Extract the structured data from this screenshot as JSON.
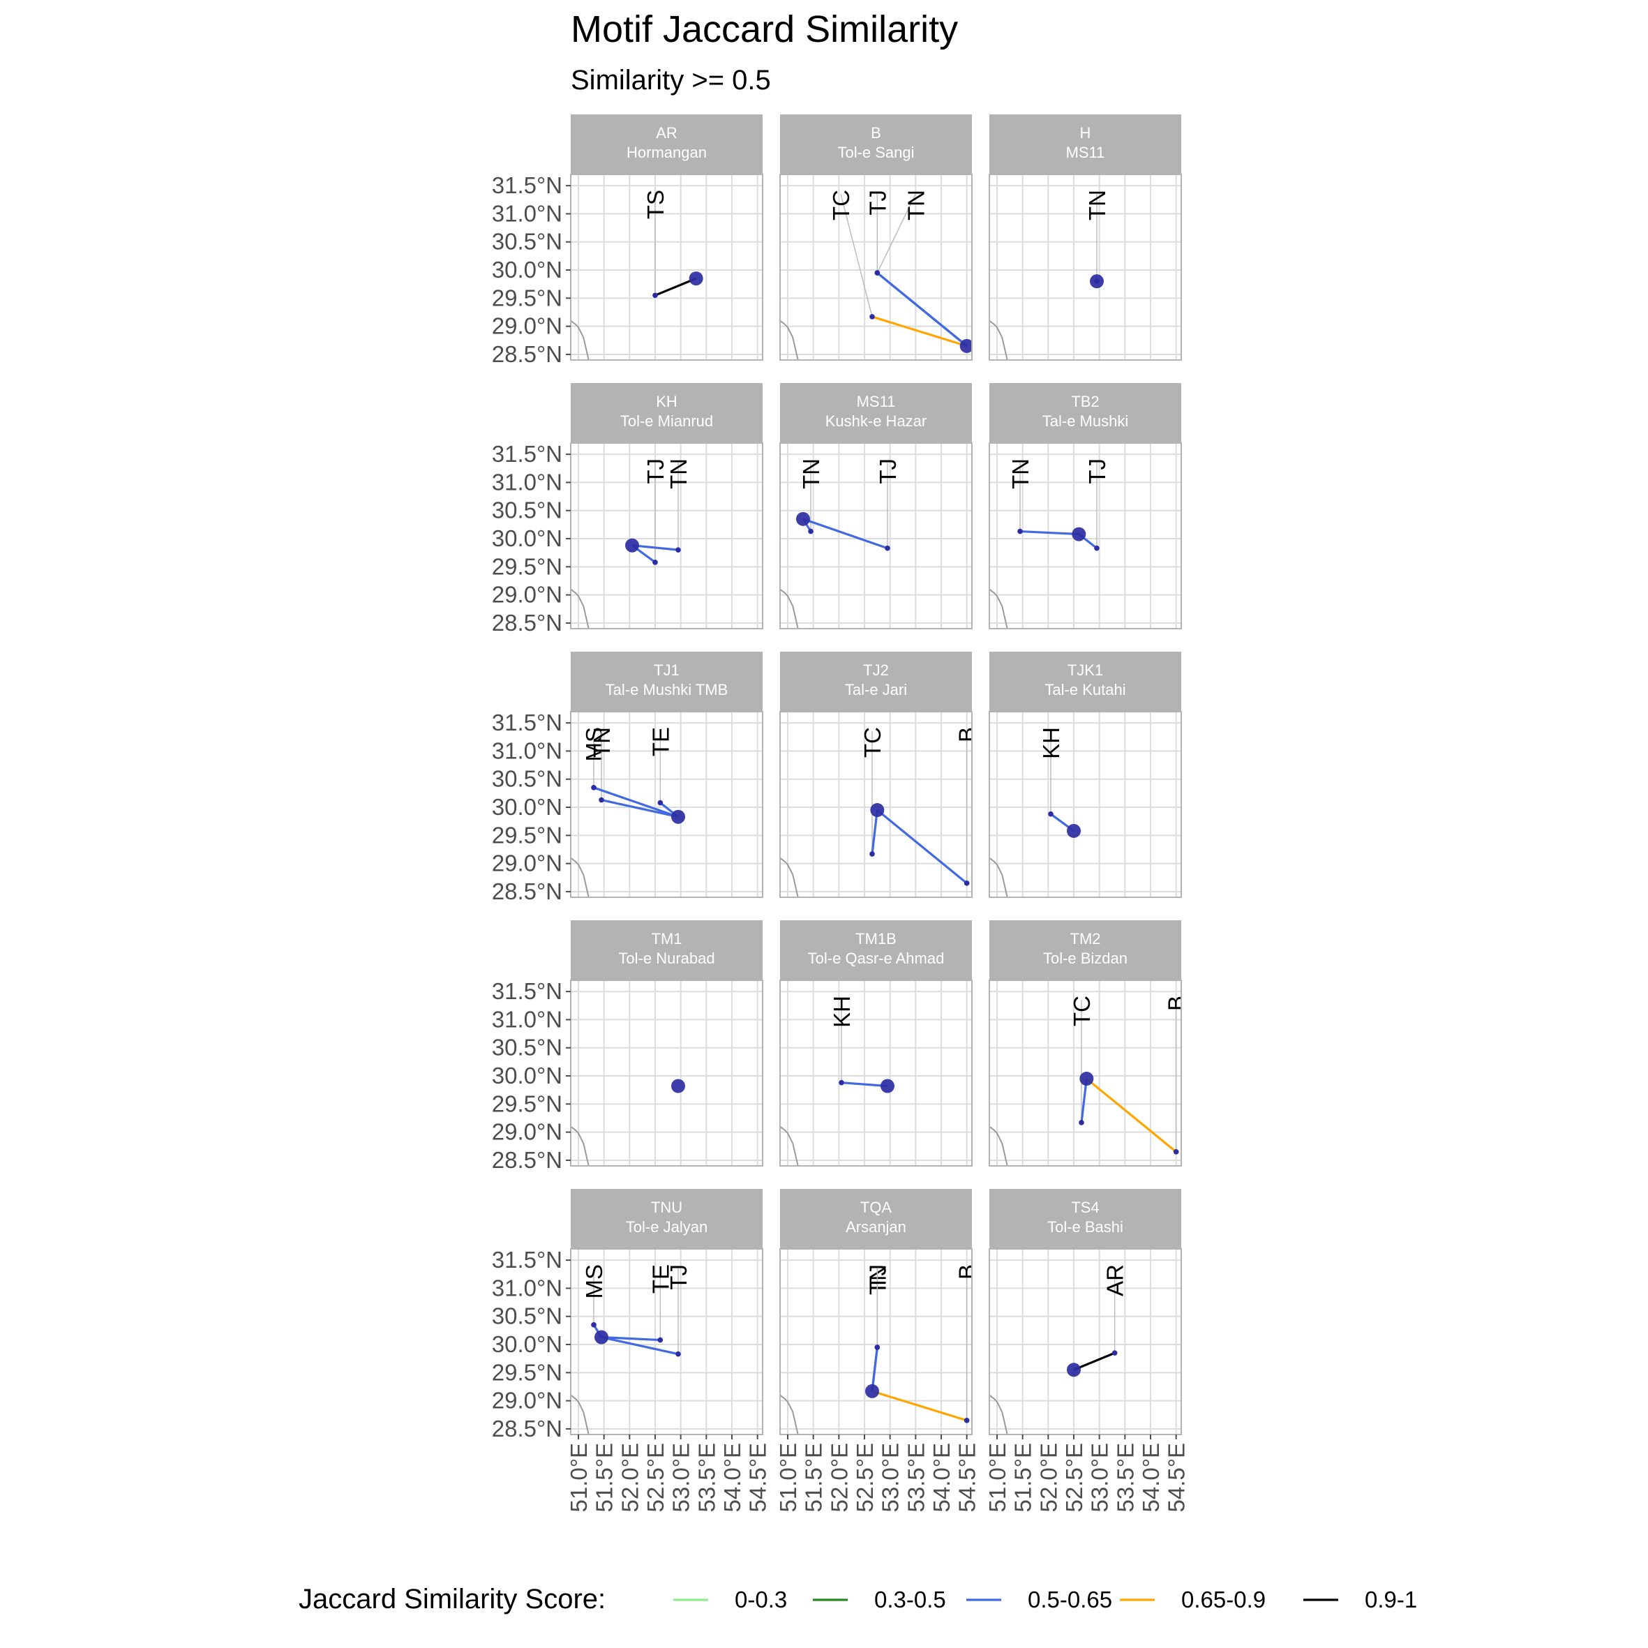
{
  "chart_data": {
    "type": "network-map",
    "title": "Motif Jaccard Similarity",
    "subtitle": "Similarity >= 0.5",
    "xlim": [
      50.85,
      54.6
    ],
    "ylim": [
      28.4,
      31.7
    ],
    "x_ticks": [
      "51.0°E",
      "51.5°E",
      "52.0°E",
      "52.5°E",
      "53.0°E",
      "53.5°E",
      "54.0°E",
      "54.5°E"
    ],
    "x_tick_values": [
      51.0,
      51.5,
      52.0,
      52.5,
      53.0,
      53.5,
      54.0,
      54.5
    ],
    "y_ticks": [
      "31.5°N",
      "31.0°N",
      "30.5°N",
      "30.0°N",
      "29.5°N",
      "29.0°N",
      "28.5°N"
    ],
    "y_tick_values": [
      31.5,
      31.0,
      30.5,
      30.0,
      29.5,
      29.0,
      28.5
    ],
    "grid": true,
    "legend_position": "bottom",
    "legend": {
      "title": "Jaccard Similarity Score:",
      "items": [
        {
          "label": "0-0.3",
          "color": "#90ee90"
        },
        {
          "label": "0.3-0.5",
          "color": "#228b22"
        },
        {
          "label": "0.5-0.65",
          "color": "#4169e1"
        },
        {
          "label": "0.65-0.9",
          "color": "#ffa500"
        },
        {
          "label": "0.9-1",
          "color": "#000000"
        }
      ]
    },
    "coastline": [
      [
        50.85,
        29.1
      ],
      [
        50.95,
        29.03
      ],
      [
        51.0,
        28.98
      ],
      [
        51.1,
        28.8
      ],
      [
        51.15,
        28.6
      ],
      [
        51.2,
        28.4
      ]
    ],
    "colors": {
      "focal_point": "#2d2da3",
      "neighbor_point": "#2d2da3",
      "strip_fill": "#b3b3b3",
      "label_line": "#bdbdbd",
      "grid": "#dcdcdc",
      "panel_border": "#b3b3b3"
    },
    "panels": [
      {
        "code": "AR",
        "name": "Hormangan",
        "focal": [
          53.3,
          29.85
        ],
        "neighbors": [
          {
            "label": "TS",
            "x": 52.5,
            "y": 29.55,
            "band": "0.9-1"
          }
        ]
      },
      {
        "code": "B",
        "name": "Tol-e Sangi",
        "focal": [
          54.5,
          28.65
        ],
        "neighbors": [
          {
            "label": "TC",
            "x": 52.65,
            "y": 29.17,
            "band": "0.65-0.9"
          },
          {
            "label": "TJ",
            "x": 52.75,
            "y": 29.95,
            "band": "0.5-0.65"
          },
          {
            "label": "TN",
            "x": 52.75,
            "y": 29.95,
            "band": "0.5-0.65"
          }
        ]
      },
      {
        "code": "H",
        "name": "MS11",
        "focal": [
          52.95,
          29.8
        ],
        "neighbors": [
          {
            "label": "TN",
            "x": 52.95,
            "y": 29.8,
            "band": "none"
          }
        ]
      },
      {
        "code": "KH",
        "name": "Tol-e Mianrud",
        "focal": [
          52.05,
          29.88
        ],
        "neighbors": [
          {
            "label": "TJ",
            "x": 52.5,
            "y": 29.58,
            "band": "0.5-0.65"
          },
          {
            "label": "TN",
            "x": 52.95,
            "y": 29.8,
            "band": "0.5-0.65"
          }
        ]
      },
      {
        "code": "MS11",
        "name": "Kushk-e Hazar",
        "focal": [
          51.3,
          30.35
        ],
        "neighbors": [
          {
            "label": "TN",
            "x": 51.45,
            "y": 30.13,
            "band": "0.5-0.65"
          },
          {
            "label": "TJ",
            "x": 52.95,
            "y": 29.83,
            "band": "0.5-0.65"
          }
        ]
      },
      {
        "code": "TB2",
        "name": "Tal-e Mushki",
        "focal": [
          52.6,
          30.08
        ],
        "neighbors": [
          {
            "label": "TN",
            "x": 51.45,
            "y": 30.13,
            "band": "0.5-0.65"
          },
          {
            "label": "TJ",
            "x": 52.95,
            "y": 29.83,
            "band": "0.5-0.65"
          }
        ]
      },
      {
        "code": "TJ1",
        "name": "Tal-e Mushki TMB",
        "focal": [
          52.95,
          29.83
        ],
        "neighbors": [
          {
            "label": "MS",
            "x": 51.3,
            "y": 30.35,
            "band": "0.5-0.65"
          },
          {
            "label": "TN",
            "x": 51.45,
            "y": 30.13,
            "band": "0.5-0.65"
          },
          {
            "label": "TE",
            "x": 52.6,
            "y": 30.08,
            "band": "0.5-0.65"
          }
        ]
      },
      {
        "code": "TJ2",
        "name": "Tal-e Jari",
        "focal": [
          52.75,
          29.95
        ],
        "neighbors": [
          {
            "label": "TC",
            "x": 52.65,
            "y": 29.17,
            "band": "0.5-0.65"
          },
          {
            "label": "B",
            "x": 54.5,
            "y": 28.65,
            "band": "0.5-0.65"
          }
        ]
      },
      {
        "code": "TJK1",
        "name": "Tal-e Kutahi",
        "focal": [
          52.5,
          29.58
        ],
        "neighbors": [
          {
            "label": "KH",
            "x": 52.05,
            "y": 29.88,
            "band": "0.5-0.65"
          }
        ]
      },
      {
        "code": "TM1",
        "name": "Tol-e Nurabad",
        "focal": [
          52.95,
          29.82
        ],
        "neighbors": []
      },
      {
        "code": "TM1B",
        "name": "Tol-e Qasr-e Ahmad",
        "focal": [
          52.95,
          29.82
        ],
        "neighbors": [
          {
            "label": "KH",
            "x": 52.05,
            "y": 29.88,
            "band": "0.5-0.65"
          }
        ]
      },
      {
        "code": "TM2",
        "name": "Tol-e Bizdan",
        "focal": [
          52.75,
          29.95
        ],
        "neighbors": [
          {
            "label": "TC",
            "x": 52.65,
            "y": 29.17,
            "band": "0.5-0.65"
          },
          {
            "label": "B",
            "x": 54.5,
            "y": 28.65,
            "band": "0.65-0.9"
          }
        ]
      },
      {
        "code": "TNU",
        "name": "Tol-e Jalyan",
        "focal": [
          51.45,
          30.13
        ],
        "neighbors": [
          {
            "label": "MS",
            "x": 51.3,
            "y": 30.35,
            "band": "0.5-0.65"
          },
          {
            "label": "TE",
            "x": 52.6,
            "y": 30.08,
            "band": "0.5-0.65"
          },
          {
            "label": "TJ",
            "x": 52.95,
            "y": 29.83,
            "band": "0.5-0.65"
          }
        ]
      },
      {
        "code": "TQA",
        "name": "Arsanjan",
        "focal": [
          52.65,
          29.17
        ],
        "neighbors": [
          {
            "label": "TN",
            "x": 52.75,
            "y": 29.95,
            "band": "0.5-0.65"
          },
          {
            "label": "TJ",
            "x": 52.75,
            "y": 29.95,
            "band": "0.5-0.65"
          },
          {
            "label": "B",
            "x": 54.5,
            "y": 28.65,
            "band": "0.65-0.9"
          }
        ]
      },
      {
        "code": "TS4",
        "name": "Tol-e Bashi",
        "focal": [
          52.5,
          29.55
        ],
        "neighbors": [
          {
            "label": "AR",
            "x": 53.3,
            "y": 29.85,
            "band": "0.9-1"
          }
        ]
      }
    ]
  }
}
